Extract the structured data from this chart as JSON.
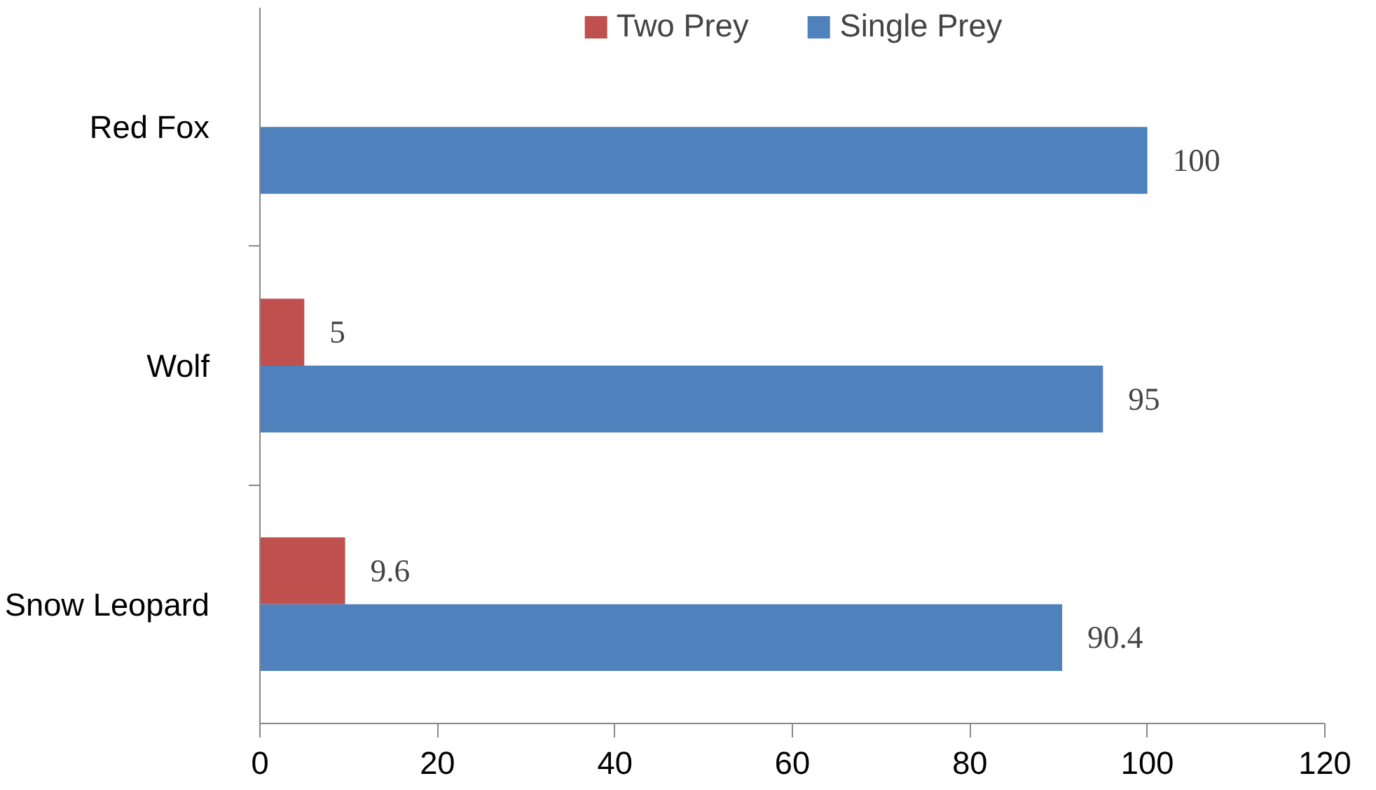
{
  "chart_data": {
    "type": "bar",
    "orientation": "horizontal",
    "categories": [
      "Red Fox",
      "Wolf",
      "Snow Leopard"
    ],
    "series": [
      {
        "name": "Two Prey",
        "color": "#c0504d",
        "values": [
          null,
          5,
          9.6
        ]
      },
      {
        "name": "Single Prey",
        "color": "#4f81bd",
        "values": [
          100,
          95,
          90.4
        ]
      }
    ],
    "xlim": [
      0,
      120
    ],
    "xticks": [
      0,
      20,
      40,
      60,
      80,
      100,
      120
    ],
    "grid": false,
    "legend": "top",
    "data_labels": true
  }
}
